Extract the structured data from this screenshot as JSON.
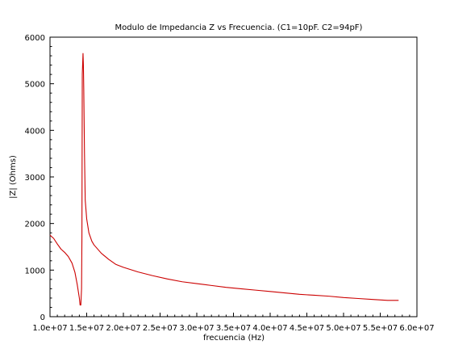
{
  "chart_data": {
    "type": "line",
    "title": "Modulo de Impedancia Z vs Frecuencia.  (C1=10pF. C2=94pF)",
    "xlabel": "frecuencia (Hz)",
    "ylabel": "|Z| (Ohms)",
    "xlim": [
      10000000,
      60000000
    ],
    "ylim": [
      0,
      6000
    ],
    "grid": false,
    "legend": "none",
    "x_ticks": [
      10000000,
      15000000,
      20000000,
      25000000,
      30000000,
      35000000,
      40000000,
      45000000,
      50000000,
      55000000,
      60000000
    ],
    "x_tick_labels": [
      "1.0e+07",
      "1.5e+07",
      "2.0e+07",
      "2.5e+07",
      "3.0e+07",
      "3.5e+07",
      "4.0e+07",
      "4.5e+07",
      "5.0e+07",
      "5.5e+07",
      "6.0e+07"
    ],
    "y_ticks": [
      0,
      1000,
      2000,
      3000,
      4000,
      5000,
      6000
    ],
    "y_tick_labels": [
      "0",
      "1000",
      "2000",
      "3000",
      "4000",
      "5000",
      "6000"
    ],
    "series": [
      {
        "color": "#cc0000",
        "x": [
          10000000,
          10500000,
          11000000,
          11500000,
          12000000,
          12500000,
          13000000,
          13400000,
          13700000,
          14000000,
          14100000,
          14200000,
          14300000,
          14350000,
          14400000,
          14500000,
          14550000,
          14600000,
          14700000,
          14800000,
          15000000,
          15300000,
          15700000,
          16000000,
          17000000,
          18000000,
          19000000,
          20000000,
          22000000,
          24000000,
          26000000,
          28000000,
          30000000,
          32000000,
          34000000,
          36000000,
          38000000,
          40000000,
          42000000,
          44000000,
          46000000,
          48000000,
          50000000,
          52000000,
          54000000,
          56000000,
          57500000
        ],
        "y": [
          1750,
          1680,
          1560,
          1450,
          1380,
          1290,
          1150,
          950,
          700,
          400,
          250,
          250,
          600,
          1700,
          5200,
          5650,
          5400,
          4900,
          3500,
          2500,
          2100,
          1800,
          1620,
          1540,
          1360,
          1230,
          1120,
          1060,
          960,
          880,
          810,
          750,
          710,
          670,
          630,
          600,
          570,
          540,
          510,
          480,
          460,
          440,
          410,
          390,
          370,
          350,
          350
        ]
      }
    ]
  }
}
